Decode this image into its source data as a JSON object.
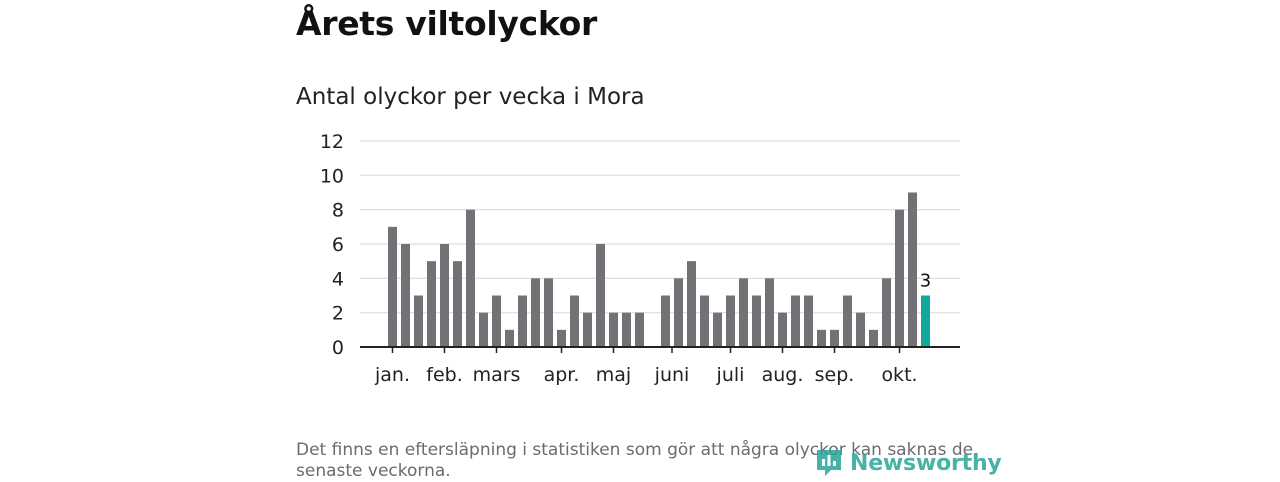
{
  "title": "Årets viltolyckor",
  "footnote": "Det finns en eftersläpning i statistiken som gör att några olyckor kan saknas de senaste veckorna.",
  "brand": {
    "name": "Newsworthy",
    "icon": "newsworthy-logo-icon"
  },
  "colors": {
    "bar": "#717176",
    "highlight": "#13a89e",
    "grid": "#dcdcdc",
    "axis": "#222222",
    "text": "#222222",
    "brand": "#2aa59a"
  },
  "chart_data": {
    "type": "bar",
    "title": "Antal olyckor per vecka i Mora",
    "xlabel": "",
    "ylabel": "",
    "ylim": [
      0,
      12
    ],
    "yticks": [
      0,
      2,
      4,
      6,
      8,
      10,
      12
    ],
    "grid": true,
    "x": [
      1,
      2,
      3,
      4,
      5,
      6,
      7,
      8,
      9,
      10,
      11,
      12,
      13,
      14,
      15,
      16,
      17,
      18,
      19,
      20,
      21,
      22,
      23,
      24,
      25,
      26,
      27,
      28,
      29,
      30,
      31,
      32,
      33,
      34,
      35,
      36,
      37,
      38,
      39,
      40,
      41,
      42
    ],
    "values": [
      7,
      6,
      3,
      5,
      6,
      5,
      8,
      2,
      3,
      1,
      3,
      4,
      4,
      1,
      3,
      2,
      6,
      2,
      2,
      2,
      0,
      3,
      4,
      5,
      3,
      2,
      3,
      4,
      3,
      4,
      2,
      3,
      3,
      1,
      1,
      3,
      2,
      1,
      4,
      8,
      9,
      3
    ],
    "highlight_index": 41,
    "highlight_label": "3",
    "month_ticks": [
      {
        "label": "jan.",
        "at": 0.0
      },
      {
        "label": "feb.",
        "at": 4.0
      },
      {
        "label": "mars",
        "at": 8.0
      },
      {
        "label": "apr.",
        "at": 13.0
      },
      {
        "label": "maj",
        "at": 17.0
      },
      {
        "label": "juni",
        "at": 21.5
      },
      {
        "label": "juli",
        "at": 26.0
      },
      {
        "label": "aug.",
        "at": 30.0
      },
      {
        "label": "sep.",
        "at": 34.0
      },
      {
        "label": "okt.",
        "at": 39.0
      }
    ]
  }
}
